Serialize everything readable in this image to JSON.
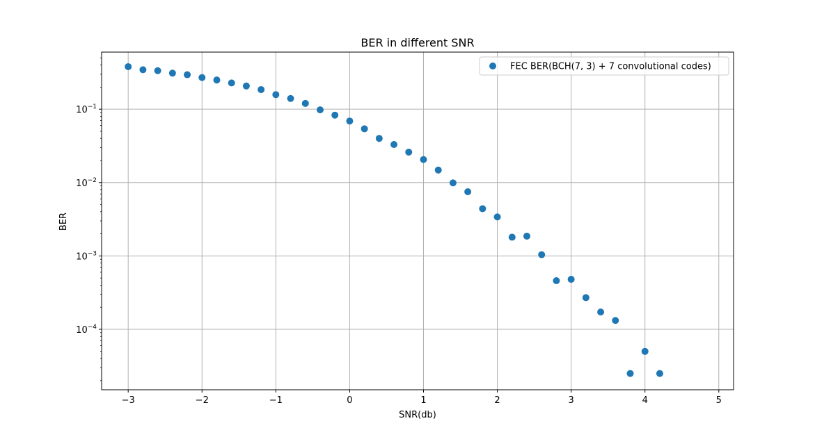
{
  "chart_data": {
    "type": "scatter",
    "title": "BER in different SNR",
    "xlabel": "SNR(db)",
    "ylabel": "BER",
    "xscale": "linear",
    "yscale": "log",
    "xlim": [
      -3.36,
      5.2
    ],
    "ylim": [
      1.5e-05,
      0.6
    ],
    "xticks": [
      -3,
      -2,
      -1,
      0,
      1,
      2,
      3,
      4,
      5
    ],
    "xtick_labels": [
      "−3",
      "−2",
      "−1",
      "0",
      "1",
      "2",
      "3",
      "4",
      "5"
    ],
    "yticks": [
      0.1,
      0.01,
      0.001,
      0.0001
    ],
    "ytick_labels": [
      {
        "base": "10",
        "exp": "−1"
      },
      {
        "base": "10",
        "exp": "−2"
      },
      {
        "base": "10",
        "exp": "−3"
      },
      {
        "base": "10",
        "exp": "−4"
      }
    ],
    "grid": true,
    "legend_position": "upper right",
    "series": [
      {
        "name": "FEC BER(BCH(7, 3) + 7 convolutional codes)",
        "color": "#1f77b4",
        "x": [
          -3.0,
          -2.8,
          -2.6,
          -2.4,
          -2.2,
          -2.0,
          -1.8,
          -1.6,
          -1.4,
          -1.2,
          -1.0,
          -0.8,
          -0.6,
          -0.4,
          -0.2,
          0.0,
          0.2,
          0.4,
          0.6,
          0.8,
          1.0,
          1.2,
          1.4,
          1.6,
          1.8,
          2.0,
          2.2,
          2.4,
          2.6,
          2.8,
          3.0,
          3.2,
          3.4,
          3.6,
          3.8,
          4.0,
          4.2
        ],
        "y": [
          0.38,
          0.345,
          0.335,
          0.31,
          0.295,
          0.27,
          0.25,
          0.228,
          0.207,
          0.185,
          0.158,
          0.14,
          0.12,
          0.098,
          0.083,
          0.069,
          0.054,
          0.04,
          0.033,
          0.026,
          0.0206,
          0.0148,
          0.0099,
          0.0075,
          0.0044,
          0.0034,
          0.0018,
          0.00186,
          0.00104,
          0.00046,
          0.00048,
          0.00027,
          0.000172,
          0.000132,
          2.5e-05,
          5e-05,
          2.5e-05
        ]
      }
    ]
  }
}
